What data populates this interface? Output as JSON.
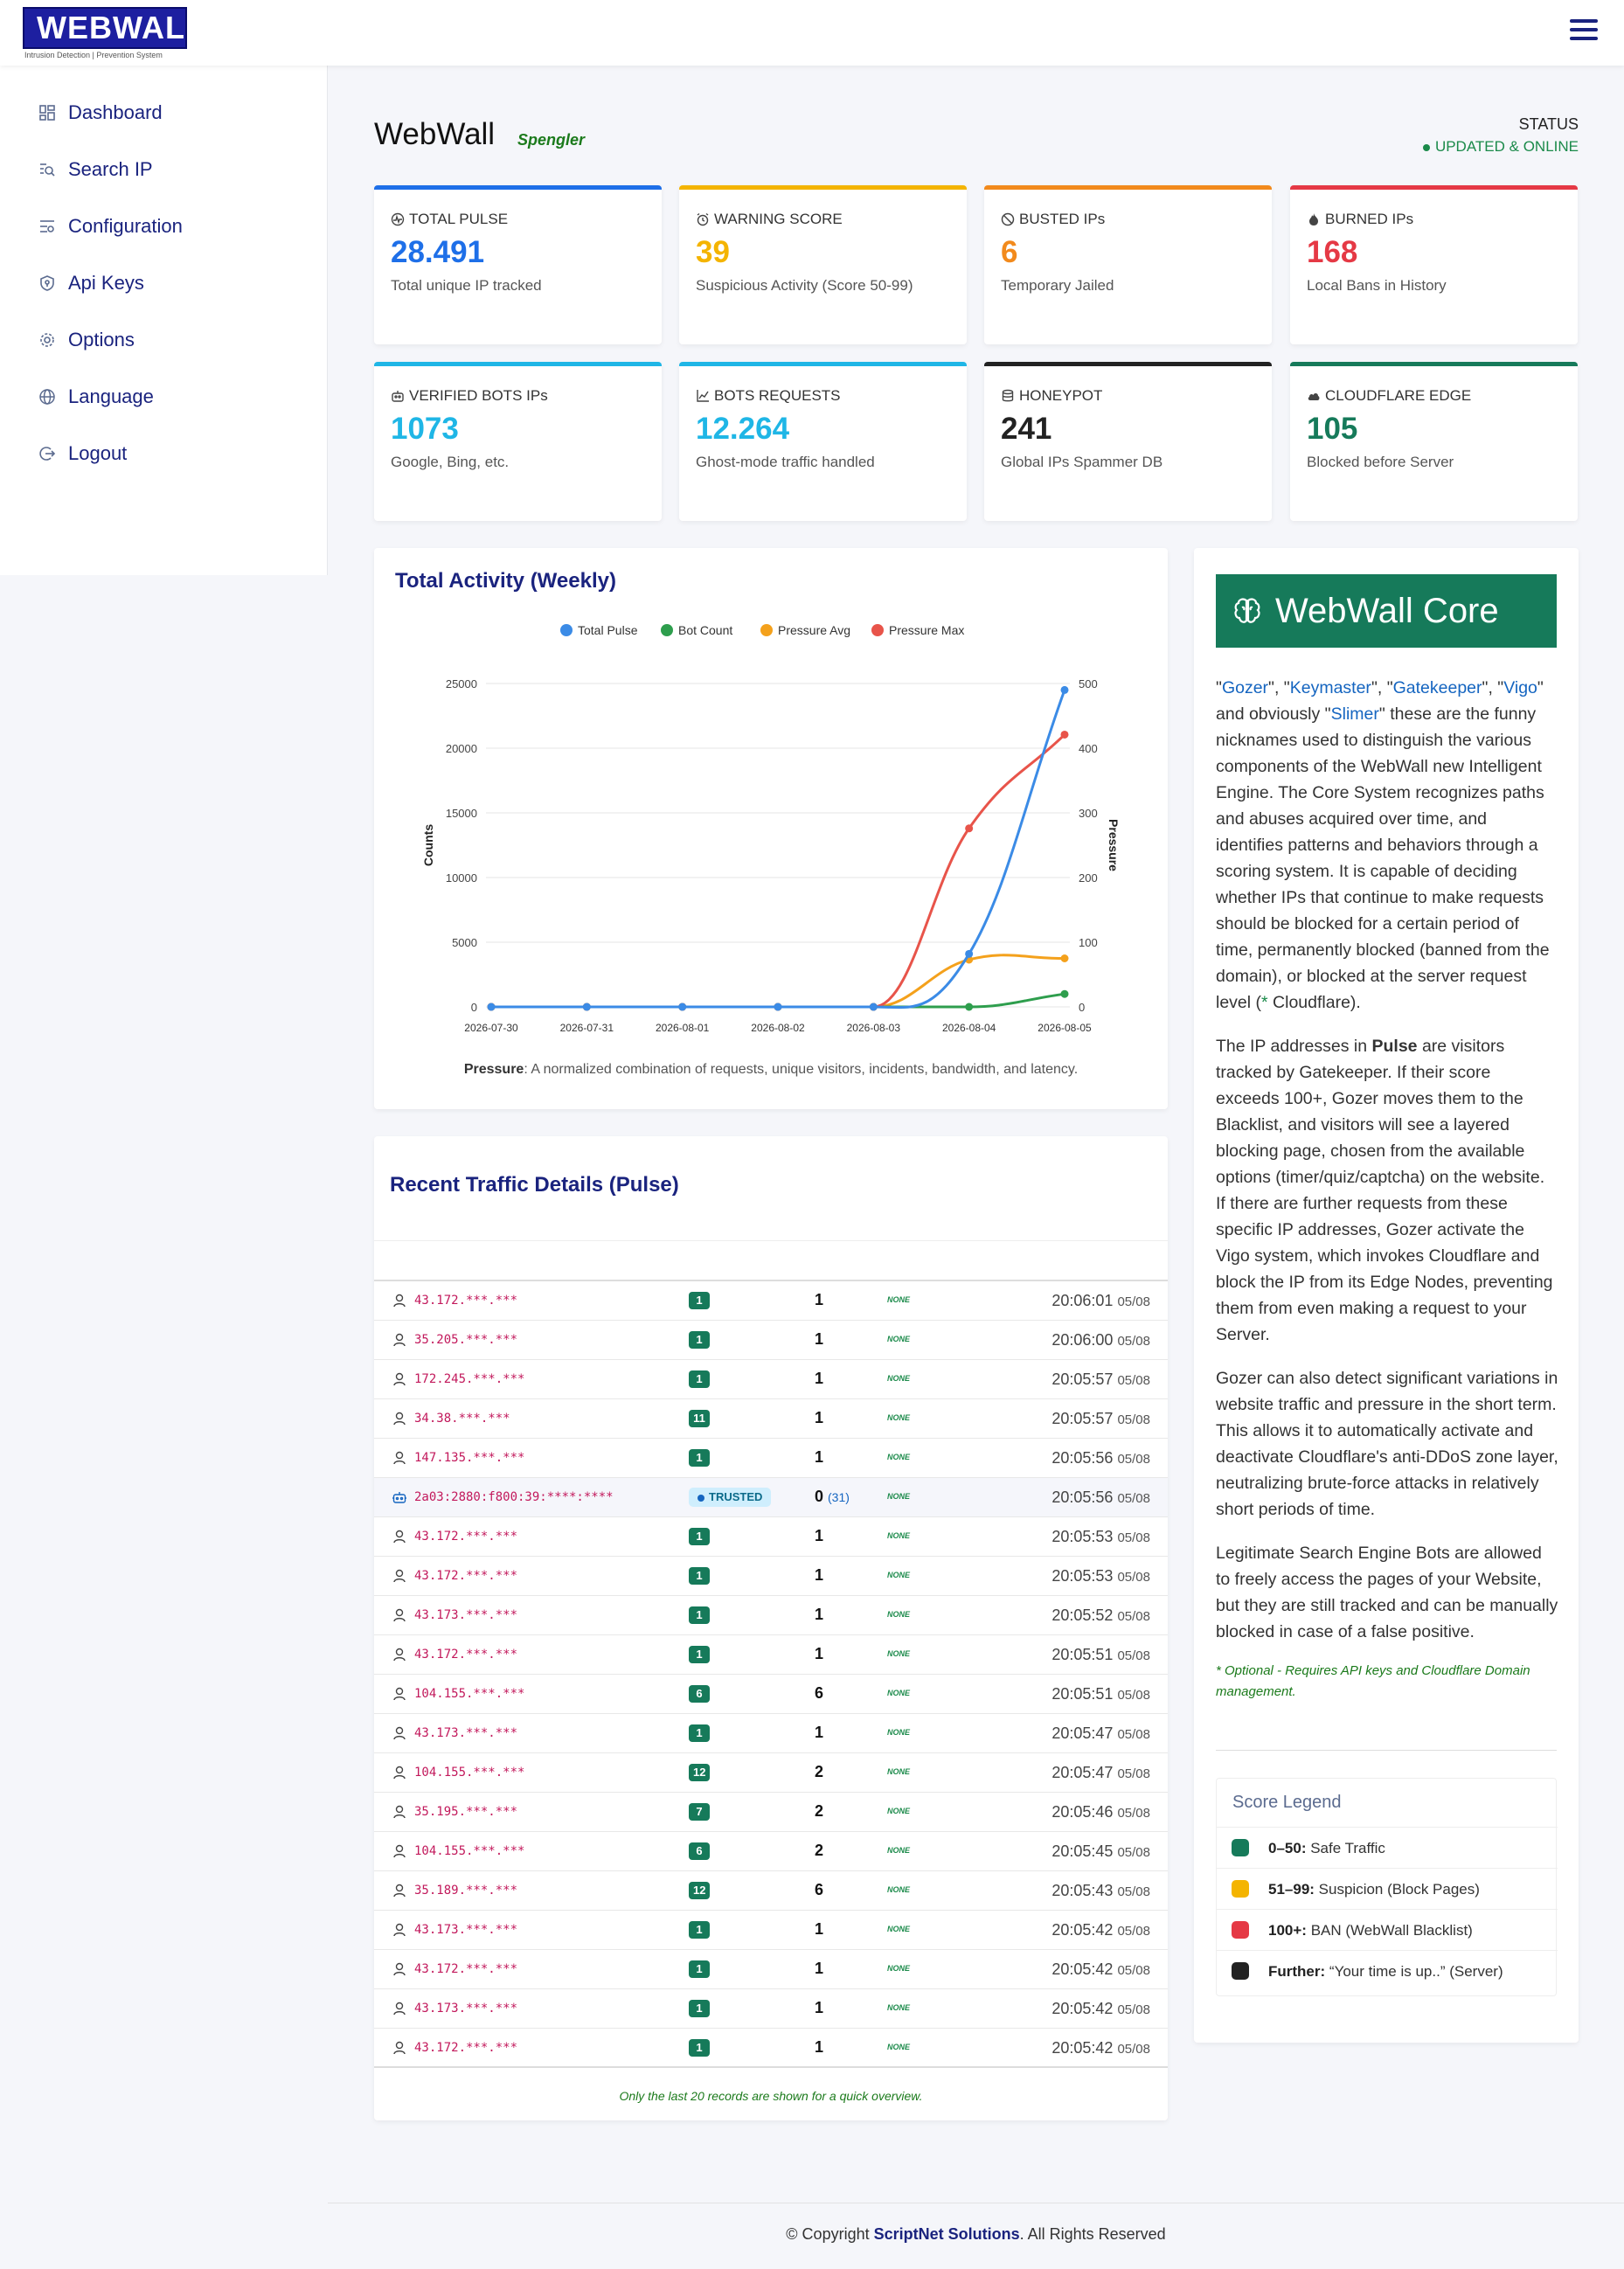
{
  "brand": {
    "name": "WEBWALL",
    "tagline": "Intrusion Detection | Prevention System"
  },
  "sidebar": {
    "items": [
      {
        "label": "Dashboard",
        "icon": "dashboard-icon"
      },
      {
        "label": "Search IP",
        "icon": "search-icon"
      },
      {
        "label": "Configuration",
        "icon": "sliders-icon"
      },
      {
        "label": "Api Keys",
        "icon": "shield-icon"
      },
      {
        "label": "Options",
        "icon": "gear-icon"
      },
      {
        "label": "Language",
        "icon": "globe-icon"
      },
      {
        "label": "Logout",
        "icon": "logout-icon"
      }
    ]
  },
  "header": {
    "title": "WebWall",
    "subtitle": "Spengler",
    "status_label": "STATUS",
    "status_value": "UPDATED  & ONLINE"
  },
  "stats": [
    {
      "title": "TOTAL PULSE",
      "value": "28.491",
      "desc": "Total unique IP tracked",
      "color": "#1e6fe8",
      "icon": "pulse-icon"
    },
    {
      "title": "WARNING SCORE",
      "value": "39",
      "desc": "Suspicious Activity (Score 50-99)",
      "color": "#f4b400",
      "icon": "alarm-icon"
    },
    {
      "title": "BUSTED IPs",
      "value": "6",
      "desc": "Temporary Jailed",
      "color": "#f28a1c",
      "icon": "ban-icon"
    },
    {
      "title": "BURNED IPs",
      "value": "168",
      "desc": "Local Bans in History",
      "color": "#e53945",
      "icon": "fire-icon"
    },
    {
      "title": "VERIFIED BOTS IPs",
      "value": "1073",
      "desc": "Google, Bing, etc.",
      "color": "#1fb6e6",
      "icon": "robot-icon"
    },
    {
      "title": "BOTS REQUESTS",
      "value": "12.264",
      "desc": "Ghost-mode traffic handled",
      "color": "#1fb6e6",
      "icon": "graph-icon"
    },
    {
      "title": "HONEYPOT",
      "value": "241",
      "desc": "Global IPs Spammer DB",
      "color": "#222222",
      "icon": "database-icon"
    },
    {
      "title": "CLOUDFLARE EDGE",
      "value": "105",
      "desc": "Blocked before Server",
      "color": "#167a5a",
      "icon": "cloud-icon"
    }
  ],
  "activity": {
    "title": "Total Activity (Weekly)",
    "footnote_label": "Pressure",
    "footnote": ": A normalized combination of requests, unique visitors, incidents, bandwidth, and latency."
  },
  "chart_data": {
    "type": "line",
    "x": [
      "2026-07-30",
      "2026-07-31",
      "2026-08-01",
      "2026-08-02",
      "2026-08-03",
      "2026-08-04",
      "2026-08-05"
    ],
    "series": [
      {
        "name": "Total Pulse",
        "axis": "left",
        "color": "#3b8be6",
        "values": [
          0,
          0,
          0,
          0,
          0,
          4100,
          24500
        ]
      },
      {
        "name": "Bot Count",
        "axis": "left",
        "color": "#2e9e4d",
        "values": [
          0,
          0,
          0,
          0,
          0,
          0,
          1000
        ]
      },
      {
        "name": "Pressure Avg",
        "axis": "right",
        "color": "#f4a11c",
        "values": [
          0,
          0,
          0,
          0,
          0,
          73,
          75
        ]
      },
      {
        "name": "Pressure Max",
        "axis": "right",
        "color": "#e8544a",
        "values": [
          0,
          0,
          0,
          0,
          0,
          276,
          421
        ]
      }
    ],
    "ylabel": "Counts",
    "y2label": "Pressure",
    "ylim": [
      0,
      25000
    ],
    "y2lim": [
      0,
      500
    ],
    "yticks": [
      0,
      5000,
      10000,
      15000,
      20000,
      25000
    ],
    "y2ticks": [
      0,
      100,
      200,
      300,
      400,
      500
    ],
    "grid": true,
    "legend": "top"
  },
  "traffic": {
    "title": "Recent Traffic Details (Pulse)",
    "footnote": "Only the last 20 records are shown for a quick overview.",
    "rows": [
      {
        "ip": "43.172.***.***",
        "score": "1",
        "req": "1",
        "extra": "",
        "status": "NONE",
        "time": "20:06:01",
        "date": "05/08",
        "type": "user"
      },
      {
        "ip": "35.205.***.***",
        "score": "1",
        "req": "1",
        "extra": "",
        "status": "NONE",
        "time": "20:06:00",
        "date": "05/08",
        "type": "user"
      },
      {
        "ip": "172.245.***.***",
        "score": "1",
        "req": "1",
        "extra": "",
        "status": "NONE",
        "time": "20:05:57",
        "date": "05/08",
        "type": "user"
      },
      {
        "ip": "34.38.***.***",
        "score": "11",
        "req": "1",
        "extra": "",
        "status": "NONE",
        "time": "20:05:57",
        "date": "05/08",
        "type": "user"
      },
      {
        "ip": "147.135.***.***",
        "score": "1",
        "req": "1",
        "extra": "",
        "status": "NONE",
        "time": "20:05:56",
        "date": "05/08",
        "type": "user"
      },
      {
        "ip": "2a03:2880:f800:39:****:****",
        "score": "TRUSTED",
        "req": "0",
        "extra": "(31)",
        "status": "NONE",
        "time": "20:05:56",
        "date": "05/08",
        "type": "bot"
      },
      {
        "ip": "43.172.***.***",
        "score": "1",
        "req": "1",
        "extra": "",
        "status": "NONE",
        "time": "20:05:53",
        "date": "05/08",
        "type": "user"
      },
      {
        "ip": "43.172.***.***",
        "score": "1",
        "req": "1",
        "extra": "",
        "status": "NONE",
        "time": "20:05:53",
        "date": "05/08",
        "type": "user"
      },
      {
        "ip": "43.173.***.***",
        "score": "1",
        "req": "1",
        "extra": "",
        "status": "NONE",
        "time": "20:05:52",
        "date": "05/08",
        "type": "user"
      },
      {
        "ip": "43.172.***.***",
        "score": "1",
        "req": "1",
        "extra": "",
        "status": "NONE",
        "time": "20:05:51",
        "date": "05/08",
        "type": "user"
      },
      {
        "ip": "104.155.***.***",
        "score": "6",
        "req": "6",
        "extra": "",
        "status": "NONE",
        "time": "20:05:51",
        "date": "05/08",
        "type": "user"
      },
      {
        "ip": "43.173.***.***",
        "score": "1",
        "req": "1",
        "extra": "",
        "status": "NONE",
        "time": "20:05:47",
        "date": "05/08",
        "type": "user"
      },
      {
        "ip": "104.155.***.***",
        "score": "12",
        "req": "2",
        "extra": "",
        "status": "NONE",
        "time": "20:05:47",
        "date": "05/08",
        "type": "user"
      },
      {
        "ip": "35.195.***.***",
        "score": "7",
        "req": "2",
        "extra": "",
        "status": "NONE",
        "time": "20:05:46",
        "date": "05/08",
        "type": "user"
      },
      {
        "ip": "104.155.***.***",
        "score": "6",
        "req": "2",
        "extra": "",
        "status": "NONE",
        "time": "20:05:45",
        "date": "05/08",
        "type": "user"
      },
      {
        "ip": "35.189.***.***",
        "score": "12",
        "req": "6",
        "extra": "",
        "status": "NONE",
        "time": "20:05:43",
        "date": "05/08",
        "type": "user"
      },
      {
        "ip": "43.173.***.***",
        "score": "1",
        "req": "1",
        "extra": "",
        "status": "NONE",
        "time": "20:05:42",
        "date": "05/08",
        "type": "user"
      },
      {
        "ip": "43.172.***.***",
        "score": "1",
        "req": "1",
        "extra": "",
        "status": "NONE",
        "time": "20:05:42",
        "date": "05/08",
        "type": "user"
      },
      {
        "ip": "43.173.***.***",
        "score": "1",
        "req": "1",
        "extra": "",
        "status": "NONE",
        "time": "20:05:42",
        "date": "05/08",
        "type": "user"
      },
      {
        "ip": "43.172.***.***",
        "score": "1",
        "req": "1",
        "extra": "",
        "status": "NONE",
        "time": "20:05:42",
        "date": "05/08",
        "type": "user"
      }
    ]
  },
  "core": {
    "title": "WebWall Core",
    "nick1": "Gozer",
    "nick2": "Keymaster",
    "nick3": "Gatekeeper",
    "nick4": "Vigo",
    "nick5": "Slimer",
    "p1_a": " and obviously ",
    "p1_b": " these are the funny nicknames used to distinguish the various components of the WebWall new Intelligent Engine. The Core System recognizes paths and abuses acquired over time, and identifies patterns and behaviors through a scoring system. It is capable of deciding whether IPs that continue to make requests should be blocked for a certain period of time, permanently blocked (banned from the domain), or blocked at the server request level (",
    "p1_star": "*",
    "p1_c": " Cloudflare).",
    "p2_a": "The IP addresses in ",
    "p2_bold": "Pulse",
    "p2_b": " are visitors tracked by Gatekeeper. If their score exceeds 100+, Gozer moves them to the Blacklist, and visitors will see a layered blocking page, chosen from the available options (timer/quiz/captcha) on the website. If there are further requests from these specific IP addresses, Gozer activate the Vigo system, which invokes Cloudflare and block the IP from its Edge Nodes, preventing them from even making a request to your Server.",
    "p3": "Gozer can also detect significant variations in website traffic and pressure in the short term. This allows it to automatically activate and deactivate Cloudflare's anti-DDoS zone layer, neutralizing brute-force attacks in relatively short periods of time.",
    "p4": "Legitimate Search Engine Bots are allowed to freely access the pages of your Website, but they are still tracked and can be manually blocked in case of a false positive.",
    "optional": "* Optional - Requires API keys and Cloudflare Domain management."
  },
  "legend": {
    "title": "Score Legend",
    "items": [
      {
        "range": "0–50:",
        "label": "Safe Traffic",
        "color": "#167a5a"
      },
      {
        "range": "51–99:",
        "label": "Suspicion (Block Pages)",
        "color": "#f4b400"
      },
      {
        "range": "100+:",
        "label": "BAN (WebWall Blacklist)",
        "color": "#e53945"
      },
      {
        "range": "Further:",
        "label": "“Your time is up..” (Server)",
        "color": "#222222"
      }
    ]
  },
  "footer": {
    "prefix": "© Copyright ",
    "company": "ScriptNet Solutions",
    "suffix": ". All Rights Reserved"
  }
}
